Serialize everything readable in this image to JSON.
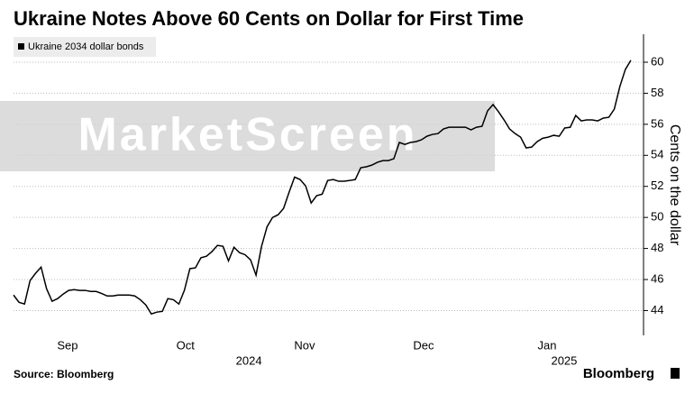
{
  "chart_data": {
    "type": "line",
    "title": "Ukraine Notes Above 60 Cents on Dollar for First Time",
    "y_axis_label": "Cents on the dollar",
    "source": "Source: Bloomberg",
    "brand": "Bloomberg",
    "watermark": "MarketScreen",
    "legend": "top-left",
    "grid": true,
    "series": [
      {
        "name": "Ukraine 2034 dollar bonds",
        "color": "#000000",
        "values": [
          45.0,
          44.53,
          44.42,
          45.93,
          46.4,
          46.8,
          45.4,
          44.6,
          44.77,
          45.06,
          45.3,
          45.35,
          45.3,
          45.3,
          45.23,
          45.23,
          45.1,
          44.94,
          44.94,
          45.0,
          45.0,
          45.0,
          44.94,
          44.7,
          44.36,
          43.78,
          43.9,
          43.95,
          44.77,
          44.7,
          44.42,
          45.3,
          46.7,
          46.75,
          47.4,
          47.5,
          47.8,
          48.2,
          48.14,
          47.2,
          48.08,
          47.73,
          47.6,
          47.27,
          46.28,
          48.14,
          49.4,
          50.0,
          50.17,
          50.58,
          51.63,
          52.6,
          52.44,
          52.03,
          50.93,
          51.4,
          51.5,
          52.38,
          52.44,
          52.33,
          52.33,
          52.38,
          52.44,
          53.2,
          53.26,
          53.37,
          53.55,
          53.66,
          53.66,
          53.78,
          54.83,
          54.7,
          54.83,
          54.88,
          55.0,
          55.23,
          55.35,
          55.4,
          55.7,
          55.81,
          55.81,
          55.81,
          55.81,
          55.64,
          55.81,
          55.87,
          56.86,
          57.27,
          56.8,
          56.28,
          55.7,
          55.4,
          55.17,
          54.48,
          54.53,
          54.88,
          55.1,
          55.17,
          55.29,
          55.23,
          55.76,
          55.81,
          56.57,
          56.22,
          56.28,
          56.28,
          56.22,
          56.4,
          56.45,
          56.98,
          58.43,
          59.53,
          60.12
        ]
      }
    ],
    "xlim": [
      0,
      114.3
    ],
    "xticks": [
      {
        "value": 9.8,
        "label": "Sep"
      },
      {
        "value": 31.2,
        "label": "Oct"
      },
      {
        "value": 52.8,
        "label": "Nov"
      },
      {
        "value": 74.4,
        "label": "Dec"
      },
      {
        "value": 96.8,
        "label": "Jan"
      }
    ],
    "x_group_labels": [
      {
        "value": 42.7,
        "label": "2024"
      },
      {
        "value": 99.9,
        "label": "2025"
      }
    ],
    "ylim": [
      42.4,
      61.8
    ],
    "yticks": [
      44,
      46,
      48,
      50,
      52,
      54,
      56,
      58,
      60
    ]
  }
}
